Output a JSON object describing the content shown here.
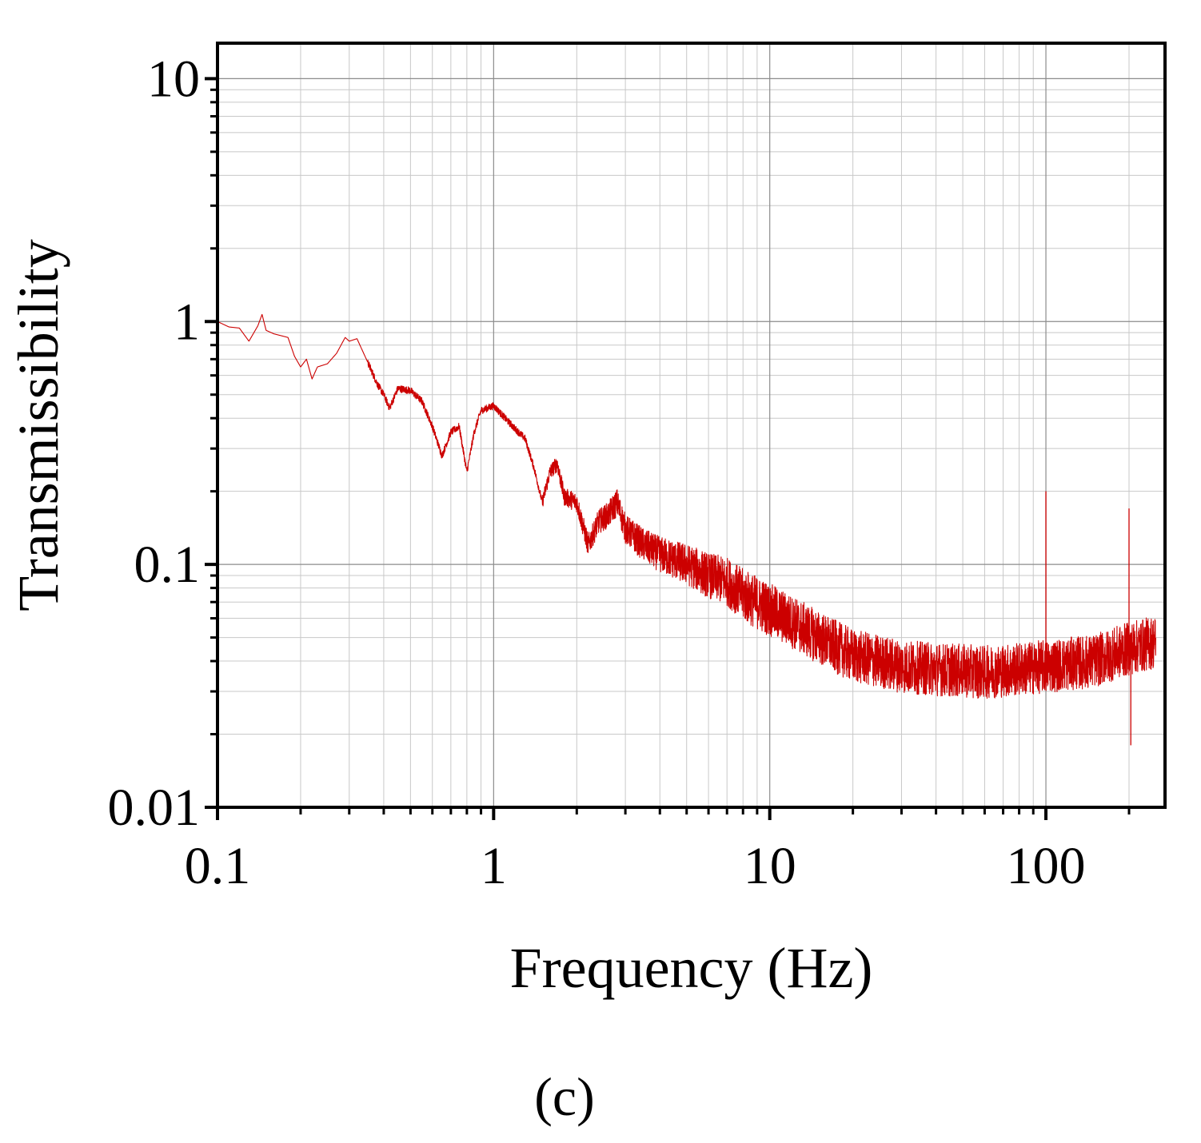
{
  "chart_data": {
    "type": "line",
    "panel_label": "(c)",
    "xlabel": "Frequency (Hz)",
    "ylabel": "Transmissibility",
    "xscale": "log",
    "yscale": "log",
    "xlim": [
      0.1,
      270
    ],
    "ylim": [
      0.01,
      14
    ],
    "xticks": [
      0.1,
      1,
      10,
      100
    ],
    "xtick_labels": [
      "0.1",
      "1",
      "10",
      "100"
    ],
    "yticks": [
      0.01,
      0.1,
      1,
      10
    ],
    "ytick_labels": [
      "0.01",
      "0.1",
      "1",
      "10"
    ],
    "grid": true,
    "legend": "none",
    "colors": {
      "series": "#cc0000",
      "grid_major": "#8c8c8c",
      "grid_minor": "#c8c8c8",
      "axis": "#000000"
    },
    "series": [
      {
        "name": "Transmissibility",
        "noise_band_log10": 0.11,
        "spikes": [
          {
            "x": 100,
            "y": 0.2
          },
          {
            "x": 200,
            "y": 0.17
          },
          {
            "x": 203,
            "y": 0.018
          }
        ],
        "points": [
          [
            0.1,
            1.0
          ],
          [
            0.11,
            0.95
          ],
          [
            0.12,
            0.94
          ],
          [
            0.13,
            0.83
          ],
          [
            0.14,
            0.96
          ],
          [
            0.145,
            1.07
          ],
          [
            0.15,
            0.92
          ],
          [
            0.16,
            0.89
          ],
          [
            0.18,
            0.86
          ],
          [
            0.19,
            0.72
          ],
          [
            0.2,
            0.65
          ],
          [
            0.21,
            0.7
          ],
          [
            0.22,
            0.58
          ],
          [
            0.23,
            0.65
          ],
          [
            0.25,
            0.67
          ],
          [
            0.27,
            0.74
          ],
          [
            0.29,
            0.86
          ],
          [
            0.3,
            0.83
          ],
          [
            0.32,
            0.85
          ],
          [
            0.35,
            0.68
          ],
          [
            0.38,
            0.55
          ],
          [
            0.4,
            0.5
          ],
          [
            0.42,
            0.44
          ],
          [
            0.45,
            0.53
          ],
          [
            0.5,
            0.52
          ],
          [
            0.55,
            0.47
          ],
          [
            0.6,
            0.37
          ],
          [
            0.65,
            0.28
          ],
          [
            0.7,
            0.35
          ],
          [
            0.75,
            0.37
          ],
          [
            0.8,
            0.24
          ],
          [
            0.85,
            0.35
          ],
          [
            0.9,
            0.43
          ],
          [
            1.0,
            0.45
          ],
          [
            1.1,
            0.4
          ],
          [
            1.2,
            0.36
          ],
          [
            1.3,
            0.33
          ],
          [
            1.4,
            0.25
          ],
          [
            1.5,
            0.18
          ],
          [
            1.6,
            0.24
          ],
          [
            1.7,
            0.26
          ],
          [
            1.8,
            0.19
          ],
          [
            2.0,
            0.18
          ],
          [
            2.2,
            0.12
          ],
          [
            2.4,
            0.15
          ],
          [
            2.6,
            0.16
          ],
          [
            2.8,
            0.18
          ],
          [
            3.0,
            0.14
          ],
          [
            3.5,
            0.12
          ],
          [
            4.0,
            0.11
          ],
          [
            5.0,
            0.1
          ],
          [
            6.0,
            0.09
          ],
          [
            7.0,
            0.085
          ],
          [
            8.0,
            0.075
          ],
          [
            10.0,
            0.065
          ],
          [
            12.0,
            0.058
          ],
          [
            15.0,
            0.05
          ],
          [
            20.0,
            0.042
          ],
          [
            30.0,
            0.038
          ],
          [
            40.0,
            0.037
          ],
          [
            60.0,
            0.036
          ],
          [
            80.0,
            0.037
          ],
          [
            100.0,
            0.038
          ],
          [
            150.0,
            0.04
          ],
          [
            200.0,
            0.045
          ],
          [
            250.0,
            0.048
          ]
        ]
      }
    ]
  }
}
